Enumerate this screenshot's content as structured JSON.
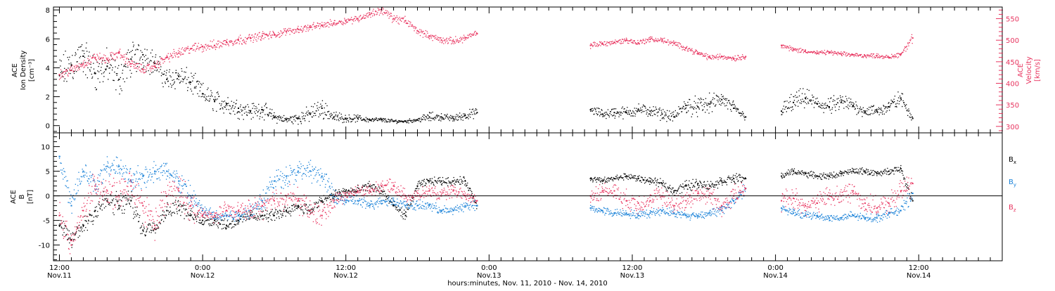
{
  "colors": {
    "axis": "#000000",
    "density": "#000000",
    "velocity": "#e8345f",
    "bx": "#000000",
    "by": "#1a82d8",
    "bz": "#e8345f"
  },
  "xaxis": {
    "title": "hours:minutes, Nov. 11, 2010 - Nov. 14, 2010",
    "range_hours": [
      -0.5,
      79.0
    ],
    "ticks": [
      {
        "hour": 0,
        "time": "12:00",
        "date": "Nov.11"
      },
      {
        "hour": 12,
        "time": "0:00",
        "date": "Nov.12"
      },
      {
        "hour": 24,
        "time": "12:00",
        "date": "Nov.12"
      },
      {
        "hour": 36,
        "time": "0:00",
        "date": "Nov.13"
      },
      {
        "hour": 48,
        "time": "12:00",
        "date": "Nov.13"
      },
      {
        "hour": 60,
        "time": "0:00",
        "date": "Nov.14"
      },
      {
        "hour": 72,
        "time": "12:00",
        "date": "Nov.14"
      }
    ]
  },
  "chart_data": [
    {
      "type": "scatter",
      "panel": "top",
      "left_axis": {
        "label_lines": [
          "ACE",
          "Ion Density",
          "[cm⁻³]"
        ],
        "ylim": [
          -0.5,
          8.2
        ],
        "ticks": [
          0,
          2,
          4,
          6,
          8
        ]
      },
      "right_axis": {
        "label_lines": [
          "ACE",
          "Velocity",
          "[km/s]"
        ],
        "ylim": [
          285,
          577
        ],
        "ticks": [
          300,
          350,
          400,
          450,
          500,
          550
        ]
      },
      "series": [
        {
          "key": "density",
          "axis": "left",
          "x": [
            0,
            1,
            2,
            3,
            4,
            5,
            6,
            7,
            8,
            9,
            10,
            11,
            12,
            13,
            14,
            15,
            16,
            17,
            18,
            19,
            20,
            21,
            22,
            23,
            24,
            25,
            26,
            27,
            28,
            29,
            30,
            31,
            32,
            33,
            34,
            35,
            44.5,
            45.5,
            46.5,
            47.5,
            48.5,
            49.5,
            50.5,
            51.5,
            52.5,
            53.5,
            54.5,
            55.5,
            56.5,
            57.5,
            60.5,
            61.5,
            62.5,
            63.5,
            64.5,
            65.5,
            66.5,
            67.5,
            68.5,
            69.5,
            70.5,
            71.5
          ],
          "y": [
            3.5,
            4.2,
            4.8,
            3.6,
            4.1,
            3.2,
            4.6,
            4.9,
            4.3,
            3.2,
            3.4,
            3.0,
            2.2,
            1.7,
            1.5,
            1.2,
            1.0,
            1.1,
            0.6,
            0.4,
            0.5,
            0.8,
            1.2,
            0.6,
            0.5,
            0.5,
            0.4,
            0.4,
            0.3,
            0.3,
            0.4,
            0.6,
            0.6,
            0.5,
            0.7,
            0.9,
            1.1,
            0.8,
            0.9,
            0.9,
            1.1,
            1.0,
            0.8,
            0.6,
            1.4,
            1.3,
            1.5,
            1.8,
            1.2,
            0.6,
            1.0,
            1.6,
            1.9,
            1.5,
            1.3,
            1.6,
            1.4,
            1.0,
            1.0,
            1.3,
            1.9,
            0.5
          ],
          "spread": [
            1.6,
            1.7,
            1.6,
            1.5,
            1.5,
            1.4,
            1.5,
            1.2,
            1.1,
            1.0,
            1.0,
            1.0,
            0.9,
            0.9,
            0.9,
            0.8,
            0.7,
            0.7,
            0.5,
            0.3,
            0.5,
            0.7,
            0.8,
            0.5,
            0.3,
            0.3,
            0.2,
            0.2,
            0.15,
            0.15,
            0.2,
            0.4,
            0.3,
            0.3,
            0.4,
            0.4,
            0.4,
            0.4,
            0.5,
            0.5,
            0.5,
            0.5,
            0.5,
            0.4,
            0.8,
            0.8,
            0.8,
            0.7,
            0.6,
            0.3,
            0.6,
            0.9,
            0.8,
            0.7,
            0.7,
            0.8,
            0.6,
            0.5,
            0.5,
            0.6,
            0.7,
            0.3
          ]
        },
        {
          "key": "velocity",
          "axis": "right",
          "x": [
            0,
            1,
            2,
            3,
            4,
            5,
            6,
            7,
            8,
            9,
            10,
            11,
            12,
            13,
            14,
            15,
            16,
            17,
            18,
            19,
            20,
            21,
            22,
            23,
            24,
            25,
            26,
            27,
            28,
            29,
            30,
            31,
            32,
            33,
            34,
            35,
            44.5,
            45.5,
            46.5,
            47.5,
            48.5,
            49.5,
            50.5,
            51.5,
            52.5,
            53.5,
            54.5,
            55.5,
            56.5,
            57.5,
            60.5,
            61.5,
            62.5,
            63.5,
            64.5,
            65.5,
            66.5,
            67.5,
            68.5,
            69.5,
            70.5,
            71.5
          ],
          "y": [
            420,
            430,
            445,
            460,
            455,
            470,
            445,
            432,
            440,
            460,
            470,
            480,
            485,
            488,
            495,
            500,
            505,
            510,
            512,
            520,
            525,
            530,
            535,
            540,
            545,
            550,
            560,
            570,
            550,
            545,
            522,
            510,
            500,
            498,
            505,
            515,
            488,
            492,
            495,
            500,
            494,
            502,
            500,
            492,
            482,
            470,
            460,
            462,
            458,
            462,
            488,
            478,
            475,
            470,
            472,
            468,
            466,
            464,
            464,
            460,
            468,
            505
          ],
          "spread": [
            12,
            14,
            14,
            14,
            14,
            14,
            14,
            12,
            12,
            14,
            14,
            14,
            14,
            14,
            14,
            14,
            12,
            12,
            12,
            10,
            10,
            10,
            10,
            10,
            10,
            10,
            10,
            12,
            12,
            12,
            10,
            10,
            10,
            10,
            10,
            10,
            8,
            8,
            8,
            8,
            8,
            8,
            8,
            8,
            8,
            8,
            8,
            8,
            8,
            8,
            6,
            8,
            6,
            6,
            6,
            6,
            6,
            6,
            6,
            6,
            8,
            14
          ]
        }
      ]
    },
    {
      "type": "scatter",
      "panel": "bottom",
      "left_axis": {
        "label_lines": [
          "ACE",
          "B",
          "[nT]"
        ],
        "ylim": [
          -13.2,
          12.8
        ],
        "ticks": [
          -10,
          -5,
          0,
          5,
          10
        ]
      },
      "legend": [
        {
          "key": "bx",
          "base": "B",
          "sub": "x"
        },
        {
          "key": "by",
          "base": "B",
          "sub": "y"
        },
        {
          "key": "bz",
          "base": "B",
          "sub": "z"
        }
      ],
      "series": [
        {
          "key": "bx",
          "x": [
            0,
            1,
            2,
            3,
            4,
            5,
            6,
            7,
            8,
            9,
            10,
            11,
            12,
            13,
            14,
            15,
            16,
            17,
            18,
            19,
            20,
            21,
            22,
            23,
            24,
            25,
            26,
            27,
            28,
            29,
            30,
            31,
            32,
            33,
            34,
            35,
            44.5,
            45.5,
            46.5,
            47.5,
            48.5,
            49.5,
            50.5,
            51.5,
            52.5,
            53.5,
            54.5,
            55.5,
            56.5,
            57.5,
            60.5,
            61.5,
            62.5,
            63.5,
            64.5,
            65.5,
            66.5,
            67.5,
            68.5,
            69.5,
            70.5,
            71.5
          ],
          "y": [
            -6,
            -9,
            -6,
            -3,
            -1,
            -2,
            -1,
            -7,
            -6,
            -3,
            -2,
            -4,
            -5,
            -5,
            -6,
            -5,
            -4,
            -4,
            -4,
            -3,
            -2,
            -3,
            -1,
            0,
            1,
            1,
            2,
            1,
            -2,
            -4,
            2,
            3,
            3,
            3,
            3,
            -2,
            3.5,
            3.0,
            3.5,
            4.0,
            3.5,
            3.0,
            2.5,
            1.0,
            2.0,
            2.5,
            2.0,
            3.0,
            3.5,
            3.5,
            4.0,
            5.0,
            4.5,
            4.0,
            4.0,
            4.5,
            5.0,
            5.0,
            4.5,
            5.0,
            5.5,
            -1.0
          ],
          "spread": [
            2,
            2.5,
            2.5,
            3,
            3,
            3,
            3,
            2,
            2,
            2,
            2,
            2,
            1.5,
            1.5,
            1.5,
            1.5,
            1.5,
            1.5,
            1.5,
            1.5,
            1.5,
            1.5,
            1.5,
            1.5,
            1.2,
            1.2,
            1.2,
            1.2,
            1.2,
            1.2,
            1,
            1,
            1,
            1,
            1,
            1,
            0.8,
            0.8,
            0.8,
            0.8,
            0.8,
            0.8,
            1,
            1.2,
            1.5,
            1.2,
            1.2,
            1.2,
            1.2,
            1,
            0.8,
            0.8,
            0.8,
            0.8,
            0.8,
            0.8,
            0.8,
            0.8,
            0.8,
            0.8,
            0.8,
            1.5
          ]
        },
        {
          "key": "by",
          "x": [
            0,
            1,
            2,
            3,
            4,
            5,
            6,
            7,
            8,
            9,
            10,
            11,
            12,
            13,
            14,
            15,
            16,
            17,
            18,
            19,
            20,
            21,
            22,
            23,
            24,
            25,
            26,
            27,
            28,
            29,
            30,
            31,
            32,
            33,
            34,
            35,
            44.5,
            45.5,
            46.5,
            47.5,
            48.5,
            49.5,
            50.5,
            51.5,
            52.5,
            53.5,
            54.5,
            55.5,
            56.5,
            57.5,
            60.5,
            61.5,
            62.5,
            63.5,
            64.5,
            65.5,
            66.5,
            67.5,
            68.5,
            69.5,
            70.5,
            71.5
          ],
          "y": [
            8,
            -2,
            5,
            2,
            6,
            6,
            3,
            4,
            5,
            5,
            3,
            0,
            -3,
            -4,
            -4,
            -4,
            -3,
            -1,
            3,
            4,
            5,
            5,
            4,
            0,
            -1,
            -1,
            -2,
            -1,
            -1,
            -2,
            -2,
            -2,
            -3,
            -3,
            -2,
            -2,
            -2.5,
            -3.0,
            -3.5,
            -3.5,
            -4.0,
            -3.5,
            -3.0,
            -3.5,
            -4.0,
            -4.0,
            -3.5,
            -3.0,
            -1.0,
            1.5,
            -2.5,
            -3.5,
            -4.0,
            -4.0,
            -4.5,
            -4.5,
            -4.0,
            -4.5,
            -4.5,
            -3.5,
            -3.0,
            0.5
          ],
          "spread": [
            2,
            3,
            3,
            3,
            2.5,
            2,
            3,
            3,
            2.5,
            2.5,
            3,
            3,
            1.5,
            1.5,
            1.5,
            1.5,
            2,
            3,
            3,
            2.5,
            2.5,
            2.5,
            2.5,
            2,
            1.5,
            1.5,
            1.2,
            1.2,
            1.2,
            1.2,
            1.2,
            1.2,
            1.2,
            1.2,
            1.2,
            1.2,
            1,
            1,
            1,
            1,
            1,
            1,
            1,
            1,
            1,
            1,
            1,
            1.2,
            1.5,
            1.5,
            1,
            1,
            1,
            1,
            1,
            1,
            1,
            1,
            1,
            1,
            1,
            2
          ]
        },
        {
          "key": "bz",
          "x": [
            0,
            1,
            2,
            3,
            4,
            5,
            6,
            7,
            8,
            9,
            10,
            11,
            12,
            13,
            14,
            15,
            16,
            17,
            18,
            19,
            20,
            21,
            22,
            23,
            24,
            25,
            26,
            27,
            28,
            29,
            30,
            31,
            32,
            33,
            34,
            35,
            44.5,
            45.5,
            46.5,
            47.5,
            48.5,
            49.5,
            50.5,
            51.5,
            52.5,
            53.5,
            54.5,
            55.5,
            56.5,
            57.5,
            60.5,
            61.5,
            62.5,
            63.5,
            64.5,
            65.5,
            66.5,
            67.5,
            68.5,
            69.5,
            70.5,
            71.5
          ],
          "y": [
            -4,
            -10,
            -3,
            2,
            1,
            0,
            2,
            -2,
            -6,
            0,
            1,
            -2,
            -4,
            -4,
            -3,
            -3,
            -3,
            -2,
            -1,
            0,
            -1,
            -3,
            -4,
            -1,
            0,
            1,
            1,
            2,
            2,
            0,
            0,
            1,
            0,
            1,
            0,
            -1,
            0.0,
            1.0,
            1.0,
            -1.0,
            -1.5,
            -1.0,
            0.0,
            -2.0,
            -1.0,
            0.5,
            0.0,
            -2.0,
            0.0,
            1.5,
            -1.0,
            -0.5,
            -2.0,
            -1.5,
            0.0,
            0.0,
            1.0,
            -1.5,
            -2.5,
            -1.5,
            1.0,
            2.5
          ],
          "spread": [
            3,
            3,
            3,
            4,
            4,
            4,
            4,
            4,
            4,
            4,
            4,
            4,
            2,
            2,
            2,
            2,
            2.5,
            3,
            3,
            3,
            3,
            3,
            3,
            2,
            1.5,
            1.5,
            1.5,
            1.5,
            1.5,
            1.5,
            1.5,
            1.5,
            1.5,
            1.5,
            1.5,
            1.5,
            2,
            2,
            2,
            2.5,
            2.5,
            2.5,
            2.5,
            2.5,
            2.5,
            2.5,
            2.5,
            2.5,
            2.5,
            2,
            2.5,
            2.5,
            2.5,
            2.5,
            2.5,
            2.5,
            2.5,
            2.5,
            2.5,
            2.5,
            2.5,
            3
          ]
        }
      ]
    }
  ]
}
